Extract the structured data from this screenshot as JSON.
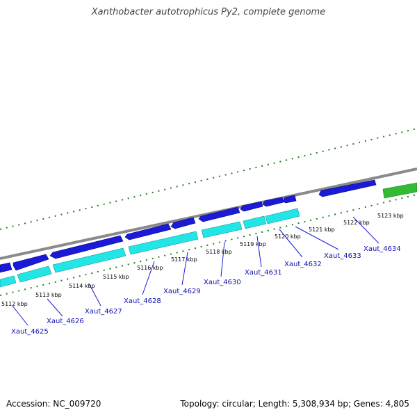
{
  "title": "Xanthobacter autotrophicus Py2, complete genome",
  "accession": "Accession: NC_009720",
  "summary": "Topology: circular; Length: 5,308,934 bp; Genes: 4,805",
  "colors": {
    "backbone": "#8a8a8a",
    "gene_forward": "#1a1ad8",
    "gene_reverse": "#22e6e6",
    "gene_highlight": "#33bb33",
    "ticks": "#1f7f1f",
    "label_line": "#1a1ad8"
  },
  "kbp_labels": [
    "5112 kbp",
    "5113 kbp",
    "5114 kbp",
    "5115 kbp",
    "5116 kbp",
    "5117 kbp",
    "5118 kbp",
    "5119 kbp",
    "5120 kbp",
    "5121 kbp",
    "5122 kbp",
    "5123 kbp"
  ],
  "gene_labels": [
    "Xaut_4625",
    "Xaut_4626",
    "Xaut_4627",
    "Xaut_4628",
    "Xaut_4629",
    "Xaut_4630",
    "Xaut_4631",
    "Xaut_4632",
    "Xaut_4633",
    "Xaut_4634"
  ]
}
